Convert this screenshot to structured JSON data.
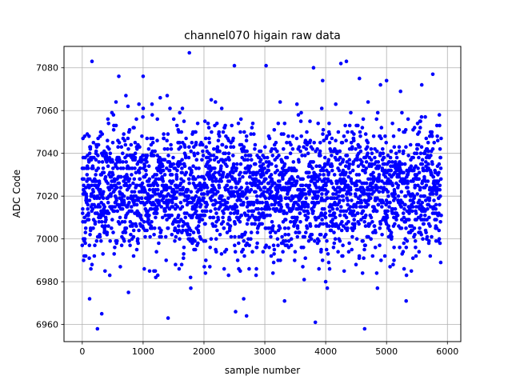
{
  "chart_data": {
    "type": "scatter",
    "title": "channel070 higain raw data",
    "xlabel": "sample number",
    "ylabel": "ADC Code",
    "xlim": [
      -300,
      6220
    ],
    "ylim": [
      6952,
      7090
    ],
    "xticks": [
      0,
      1000,
      2000,
      3000,
      4000,
      5000,
      6000
    ],
    "yticks": [
      6960,
      6980,
      7000,
      7020,
      7040,
      7060,
      7080
    ],
    "grid": true,
    "marker_color": "#0000ff",
    "series": [
      {
        "n_points": 5900,
        "x_range": [
          0,
          5899
        ],
        "center": 7022,
        "spread_sd": 15,
        "dense_band": [
          6995,
          7050
        ],
        "outliers": [
          [
            160,
            7083
          ],
          [
            1760,
            7087
          ],
          [
            2500,
            7081
          ],
          [
            3020,
            7081
          ],
          [
            3800,
            7080
          ],
          [
            4250,
            7082
          ],
          [
            4340,
            7083
          ],
          [
            5760,
            7077
          ],
          [
            250,
            6958
          ],
          [
            1410,
            6963
          ],
          [
            2520,
            6966
          ],
          [
            2700,
            6964
          ],
          [
            3830,
            6961
          ],
          [
            4640,
            6958
          ],
          [
            320,
            6965
          ],
          [
            600,
            7076
          ],
          [
            1000,
            7076
          ],
          [
            5000,
            7074
          ],
          [
            3950,
            7074
          ],
          [
            120,
            6972
          ]
        ]
      }
    ]
  }
}
